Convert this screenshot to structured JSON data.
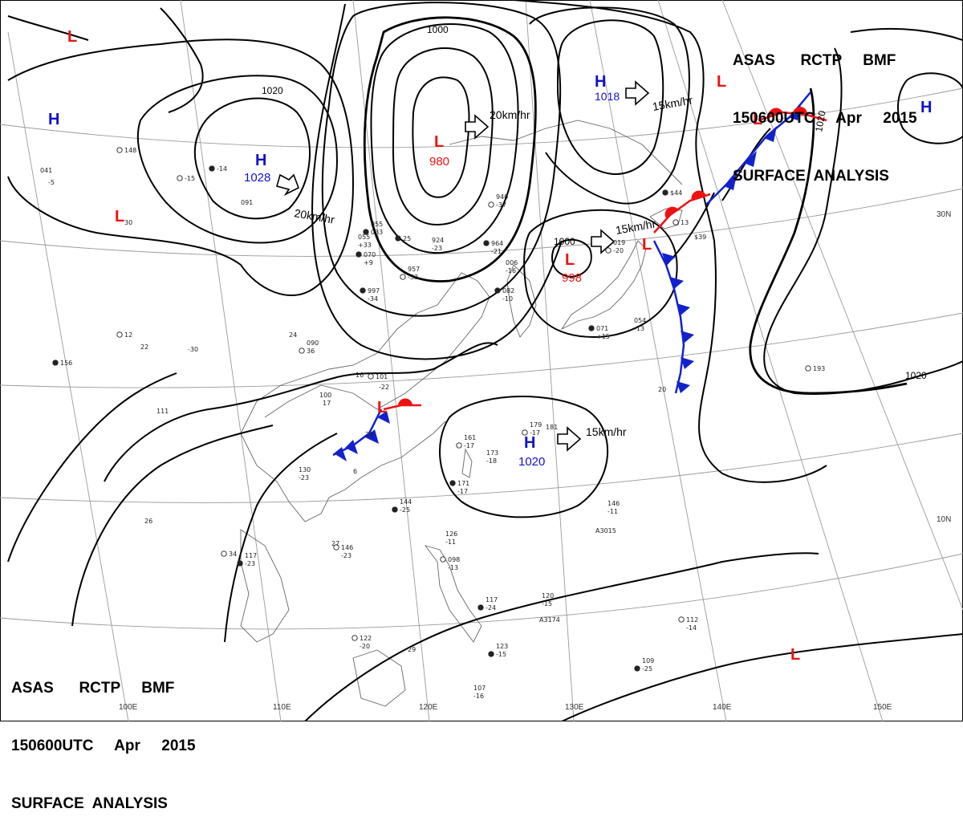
{
  "header": {
    "line1": "ASAS      RCTP     BMF",
    "line2": "150600UTC     Apr     2015",
    "line3": "SURFACE  ANALYSIS"
  },
  "colors": {
    "low": "#ee1111",
    "high": "#1111cc",
    "isobar": "#000000",
    "grid": "#999999",
    "coast": "#555555"
  },
  "pressure_centers": [
    {
      "type": "L",
      "value": ""
    },
    {
      "type": "H",
      "value": ""
    },
    {
      "type": "L",
      "value": ""
    },
    {
      "type": "H",
      "value": "1028"
    },
    {
      "type": "L",
      "value": "980"
    },
    {
      "type": "H",
      "value": "1018"
    },
    {
      "type": "L",
      "value": ""
    },
    {
      "type": "H",
      "value": ""
    },
    {
      "type": "L",
      "value": ""
    },
    {
      "type": "L",
      "value": "998"
    },
    {
      "type": "L",
      "value": ""
    },
    {
      "type": "L",
      "value": ""
    },
    {
      "type": "H",
      "value": "1020"
    },
    {
      "type": "L",
      "value": ""
    }
  ],
  "isobar_labels": [
    "1020",
    "1000",
    "1000",
    "1020",
    "1020"
  ],
  "movement_labels": [
    "20km/hr",
    "20km/hr",
    "15km/hr",
    "15km/hr",
    "15km/hr"
  ],
  "longitude_labels": [
    "100E",
    "110E",
    "120E",
    "130E",
    "140E",
    "150E"
  ],
  "latitude_labels": [
    "30N",
    "10N"
  ],
  "station_plots": [
    "148",
    "041",
    "055",
    "033",
    "091",
    "16",
    "12",
    "22",
    "30",
    "156",
    "111",
    "100",
    "101",
    "17",
    "-22",
    "997",
    "-34",
    "090",
    "36",
    "924",
    "-23",
    "964",
    "-21",
    "957",
    "-33",
    "055",
    "+33",
    "070",
    "+9",
    "940",
    "-37",
    "006",
    "-16",
    "082",
    "-10",
    "019",
    "-20",
    "054",
    "-13",
    "071",
    "+15",
    "161",
    "-17",
    "173",
    "-18",
    "171",
    "-17",
    "179",
    "-17",
    "181",
    "144",
    "-25",
    "130",
    "-23",
    "146",
    "-23",
    "117",
    "-23",
    "126",
    "-11",
    "098",
    "-13",
    "117",
    "-24",
    "120",
    "-15",
    "122",
    "-20",
    "123",
    "-15",
    "107",
    "-16",
    "112",
    "-14",
    "109",
    "-25",
    "146",
    "-11",
    "193",
    "A3015",
    "A3174",
    "$44",
    "$39",
    "-30",
    "-15",
    "-5",
    "6",
    "-14",
    "26",
    "29",
    "34",
    "28",
    "27",
    "25",
    "24",
    "20",
    "13"
  ]
}
